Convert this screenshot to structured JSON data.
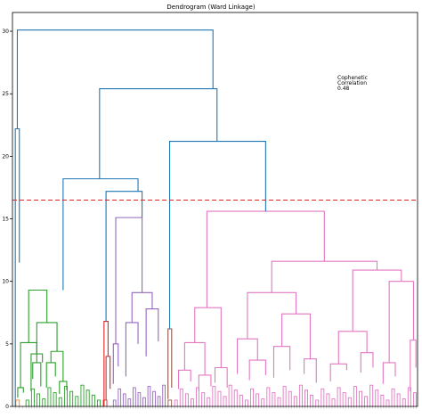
{
  "chart_data": {
    "type": "dendrogram",
    "title": "Dendrogram (Ward Linkage)",
    "xlabel": "",
    "ylabel": "",
    "ylim": [
      0,
      31.5
    ],
    "yticks": [
      0,
      5,
      10,
      15,
      20,
      25,
      30
    ],
    "x_range": [
      0,
      100
    ],
    "cut_threshold": 16.5,
    "annotation": [
      "Cophenetic",
      "Correlation",
      "0.48"
    ],
    "grid": false,
    "colors": {
      "upper": "#1f77b4",
      "orange": "#ff7f0e",
      "green": "#2ca02c",
      "red": "#d62728",
      "purple": "#9467bd",
      "brown": "#8c564b",
      "pink": "#e377c2",
      "threshold": "#d62728"
    },
    "leaf_clusters": [
      {
        "color": "orange",
        "x": [
          0.4,
          3.0
        ],
        "top": 11.5,
        "count": 3
      },
      {
        "color": "green",
        "x": [
          3.0,
          22.0
        ],
        "top": 9.3,
        "count": 28
      },
      {
        "color": "red",
        "x": [
          22.0,
          24.6
        ],
        "top": 6.8,
        "count": 3
      },
      {
        "color": "purple",
        "x": [
          24.6,
          38.0
        ],
        "top": 15.1,
        "count": 22
      },
      {
        "color": "brown",
        "x": [
          38.0,
          39.7
        ],
        "top": 6.2,
        "count": 2
      },
      {
        "color": "pink",
        "x": [
          39.7,
          100.0
        ],
        "top": 15.6,
        "count": 90
      }
    ],
    "links": [
      {
        "color": "green",
        "l": [
          4.0,
          5.1
        ],
        "r": [
          8.5,
          6.7
        ],
        "h": 9.3
      },
      {
        "color": "green",
        "l": [
          2.0,
          1.5
        ],
        "r": [
          6.0,
          3.5
        ],
        "h": 5.1
      },
      {
        "color": "green",
        "l": [
          1.3,
          0.7
        ],
        "r": [
          2.7,
          1.1
        ],
        "h": 1.5
      },
      {
        "color": "green",
        "l": [
          5.0,
          2.2
        ],
        "r": [
          7.0,
          1.6
        ],
        "h": 3.5
      },
      {
        "color": "green",
        "l": [
          6.0,
          4.2
        ],
        "r": [
          11.0,
          4.4
        ],
        "h": 6.7
      },
      {
        "color": "green",
        "l": [
          4.6,
          1.2
        ],
        "r": [
          7.4,
          3.5
        ],
        "h": 4.2
      },
      {
        "color": "green",
        "l": [
          9.5,
          3.5
        ],
        "r": [
          12.5,
          2.0
        ],
        "h": 4.4
      },
      {
        "color": "green",
        "l": [
          8.4,
          1.5
        ],
        "r": [
          10.6,
          2.4
        ],
        "h": 3.5
      },
      {
        "color": "green",
        "l": [
          11.6,
          1.0
        ],
        "r": [
          13.4,
          1.3
        ],
        "h": 2.0
      },
      {
        "color": "red",
        "l": [
          22.6,
          0.0
        ],
        "r": [
          23.6,
          4.0
        ],
        "h": 6.8
      },
      {
        "color": "red",
        "l": [
          23.1,
          0.5
        ],
        "r": [
          24.1,
          1.4
        ],
        "h": 4.0
      },
      {
        "color": "purple",
        "l": [
          25.5,
          5.0
        ],
        "r": [
          32.0,
          9.1
        ],
        "h": 15.1
      },
      {
        "color": "purple",
        "l": [
          24.9,
          1.8
        ],
        "r": [
          26.1,
          3.2
        ],
        "h": 5.0
      },
      {
        "color": "purple",
        "l": [
          29.5,
          6.7
        ],
        "r": [
          34.5,
          7.8
        ],
        "h": 9.1
      },
      {
        "color": "purple",
        "l": [
          28.0,
          2.4
        ],
        "r": [
          31.0,
          5.0
        ],
        "h": 6.7
      },
      {
        "color": "purple",
        "l": [
          33.0,
          4.0
        ],
        "r": [
          36.0,
          5.2
        ],
        "h": 7.8
      },
      {
        "color": "brown",
        "l": [
          38.4,
          0.6
        ],
        "r": [
          39.3,
          1.5
        ],
        "h": 6.2
      },
      {
        "color": "pink",
        "l": [
          48.0,
          7.9
        ],
        "r": [
          77.0,
          11.6
        ],
        "h": 15.6
      },
      {
        "color": "pink",
        "l": [
          45.0,
          5.1
        ],
        "r": [
          51.5,
          3.1
        ],
        "h": 7.9
      },
      {
        "color": "pink",
        "l": [
          42.5,
          2.9
        ],
        "r": [
          47.5,
          2.5
        ],
        "h": 5.1
      },
      {
        "color": "pink",
        "l": [
          41.0,
          1.4
        ],
        "r": [
          44.0,
          2.0
        ],
        "h": 2.9
      },
      {
        "color": "pink",
        "l": [
          46.0,
          1.2
        ],
        "r": [
          49.0,
          1.6
        ],
        "h": 2.5
      },
      {
        "color": "pink",
        "l": [
          50.0,
          1.9
        ],
        "r": [
          53.0,
          1.5
        ],
        "h": 3.1
      },
      {
        "color": "pink",
        "l": [
          64.0,
          9.1
        ],
        "r": [
          90.0,
          10.9
        ],
        "h": 11.6
      },
      {
        "color": "pink",
        "l": [
          58.0,
          5.4
        ],
        "r": [
          70.0,
          7.4
        ],
        "h": 9.1
      },
      {
        "color": "pink",
        "l": [
          55.5,
          2.6
        ],
        "r": [
          60.5,
          3.7
        ],
        "h": 5.4
      },
      {
        "color": "pink",
        "l": [
          58.5,
          2.1
        ],
        "r": [
          62.5,
          2.5
        ],
        "h": 3.7
      },
      {
        "color": "pink",
        "l": [
          66.5,
          4.8
        ],
        "r": [
          73.5,
          3.8
        ],
        "h": 7.4
      },
      {
        "color": "pink",
        "l": [
          64.5,
          2.3
        ],
        "r": [
          68.5,
          2.9
        ],
        "h": 4.8
      },
      {
        "color": "pink",
        "l": [
          72.0,
          2.6
        ],
        "r": [
          75.0,
          1.9
        ],
        "h": 3.8
      },
      {
        "color": "pink",
        "l": [
          84.0,
          6.0
        ],
        "r": [
          96.0,
          10.0
        ],
        "h": 10.9
      },
      {
        "color": "pink",
        "l": [
          80.5,
          3.4
        ],
        "r": [
          87.5,
          4.3
        ],
        "h": 6.0
      },
      {
        "color": "pink",
        "l": [
          78.5,
          2.0
        ],
        "r": [
          82.5,
          2.9
        ],
        "h": 3.4
      },
      {
        "color": "pink",
        "l": [
          86.0,
          2.7
        ],
        "r": [
          89.0,
          3.1
        ],
        "h": 4.3
      },
      {
        "color": "pink",
        "l": [
          93.0,
          3.5
        ],
        "r": [
          99.0,
          5.3
        ],
        "h": 10.0
      },
      {
        "color": "pink",
        "l": [
          91.5,
          1.8
        ],
        "r": [
          94.5,
          2.4
        ],
        "h": 3.5
      },
      {
        "color": "pink",
        "l": [
          98.2,
          1.2
        ],
        "r": [
          99.6,
          3.1
        ],
        "h": 5.3
      },
      {
        "color": "upper",
        "l": [
          1.7,
          11.5
        ],
        "r": [
          0.7,
          0.0
        ],
        "h": 22.2
      },
      {
        "color": "upper",
        "l": [
          1.2,
          22.2
        ],
        "r": [
          49.5,
          25.4
        ],
        "h": 30.1
      },
      {
        "color": "upper",
        "l": [
          12.5,
          9.3
        ],
        "r": [
          31.0,
          17.2
        ],
        "h": 18.2
      },
      {
        "color": "upper",
        "l": [
          23.1,
          6.8
        ],
        "r": [
          32.0,
          15.1
        ],
        "h": 17.2
      },
      {
        "color": "upper",
        "l": [
          38.8,
          6.2
        ],
        "r": [
          62.5,
          15.6
        ],
        "h": 21.2
      },
      {
        "color": "upper",
        "l": [
          21.5,
          18.2
        ],
        "r": [
          50.5,
          21.2
        ],
        "h": 25.4
      }
    ]
  }
}
